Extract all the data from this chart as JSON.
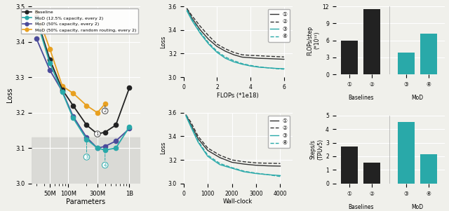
{
  "left_panel": {
    "xlabel": "Parameters",
    "ylabel": "Loss",
    "ylim": [
      3.0,
      3.5
    ],
    "shaded_region": [
      3.0,
      3.13
    ],
    "baseline_params": [
      30000000,
      50000000,
      80000000,
      120000000,
      200000000,
      300000000,
      400000000,
      600000000,
      1000000000
    ],
    "baseline_loss": [
      3.47,
      3.35,
      3.265,
      3.22,
      3.165,
      3.14,
      3.145,
      3.165,
      3.27
    ],
    "mod125_params": [
      30000000,
      50000000,
      80000000,
      120000000,
      200000000,
      300000000,
      400000000,
      600000000,
      1000000000
    ],
    "mod125_loss": [
      3.465,
      3.34,
      3.258,
      3.185,
      3.125,
      3.1,
      3.095,
      3.1,
      3.16
    ],
    "mod50_params": [
      30000000,
      50000000,
      80000000,
      120000000,
      200000000,
      300000000,
      400000000,
      600000000,
      1000000000
    ],
    "mod50_loss": [
      3.41,
      3.32,
      3.26,
      3.19,
      3.13,
      3.1,
      3.105,
      3.12,
      3.155
    ],
    "random50_params": [
      30000000,
      50000000,
      80000000,
      120000000,
      200000000,
      300000000,
      400000000
    ],
    "random50_loss": [
      3.485,
      3.38,
      3.275,
      3.255,
      3.22,
      3.2,
      3.225
    ],
    "color_baseline": "#222222",
    "color_mod125": "#29A9A9",
    "color_mod50": "#4B4B9A",
    "color_random50": "#E8A020",
    "xtick_labels": [
      "50M",
      "100M",
      "300M",
      "1B"
    ],
    "xtick_vals": [
      50000000,
      100000000,
      300000000,
      1000000000
    ]
  },
  "middle_panel_top": {
    "xlabel": "FLOPs (*1e18)",
    "ylabel": "Loss",
    "xlim": [
      0,
      6.5
    ],
    "ylim": [
      3.0,
      3.6
    ],
    "yticks": [
      3.0,
      3.2,
      3.4,
      3.6
    ],
    "xticks": [
      0,
      2,
      4,
      6
    ],
    "curve1_x": [
      0.2,
      0.5,
      1.0,
      1.5,
      2.0,
      2.5,
      3.0,
      3.5,
      4.0,
      4.5,
      5.0,
      5.5,
      6.0
    ],
    "curve1_y": [
      3.58,
      3.5,
      3.4,
      3.32,
      3.26,
      3.22,
      3.19,
      3.17,
      3.165,
      3.16,
      3.158,
      3.155,
      3.152
    ],
    "curve2_x": [
      0.2,
      0.5,
      1.0,
      1.5,
      2.0,
      2.5,
      3.0,
      3.5,
      4.0,
      4.5,
      5.0,
      5.5,
      6.0
    ],
    "curve2_y": [
      3.58,
      3.52,
      3.43,
      3.35,
      3.28,
      3.24,
      3.21,
      3.19,
      3.185,
      3.182,
      3.178,
      3.175,
      3.172
    ],
    "curve3_x": [
      0.2,
      0.5,
      1.0,
      1.5,
      2.0,
      2.5,
      3.0,
      3.5,
      4.0,
      4.5,
      5.0,
      5.5,
      6.0
    ],
    "curve3_y": [
      3.56,
      3.48,
      3.37,
      3.28,
      3.21,
      3.16,
      3.13,
      3.11,
      3.095,
      3.085,
      3.08,
      3.075,
      3.072
    ],
    "curve4_x": [
      0.2,
      0.5,
      1.0,
      1.5,
      2.0,
      2.5,
      3.0,
      3.5,
      4.0,
      4.5,
      5.0,
      5.5,
      6.0
    ],
    "curve4_y": [
      3.57,
      3.49,
      3.38,
      3.29,
      3.22,
      3.17,
      3.14,
      3.115,
      3.1,
      3.088,
      3.08,
      3.073,
      3.068
    ]
  },
  "middle_panel_bottom": {
    "xlabel": "Wall-clock",
    "ylabel": "Loss",
    "xlim": [
      0,
      4500
    ],
    "ylim": [
      3.0,
      3.6
    ],
    "yticks": [
      3.0,
      3.2,
      3.4,
      3.6
    ],
    "xticks": [
      0,
      1000,
      2000,
      3000,
      4000
    ],
    "curve1_x": [
      100,
      300,
      600,
      1000,
      1500,
      2000,
      2500,
      3000,
      3500,
      4000
    ],
    "curve1_y": [
      3.58,
      3.5,
      3.38,
      3.28,
      3.22,
      3.18,
      3.165,
      3.155,
      3.15,
      3.148
    ],
    "curve2_x": [
      100,
      300,
      600,
      1000,
      1500,
      2000,
      2500,
      3000,
      3500,
      4000
    ],
    "curve2_y": [
      3.58,
      3.52,
      3.4,
      3.3,
      3.24,
      3.2,
      3.185,
      3.175,
      3.172,
      3.17
    ],
    "curve3_x": [
      100,
      300,
      600,
      1000,
      1500,
      2000,
      2500,
      3000,
      3500,
      4000
    ],
    "curve3_y": [
      3.57,
      3.48,
      3.35,
      3.23,
      3.16,
      3.13,
      3.1,
      3.085,
      3.075,
      3.068
    ],
    "curve4_x": [
      100,
      300,
      600,
      1000,
      1500,
      2000,
      2500,
      3000,
      3500,
      4000
    ],
    "curve4_y": [
      3.58,
      3.49,
      3.36,
      3.24,
      3.17,
      3.135,
      3.105,
      3.088,
      3.075,
      3.06
    ]
  },
  "bar_top": {
    "ylabel": "FLOPs/step\n(*10¹¹)",
    "ylim": [
      0,
      12
    ],
    "yticks": [
      0,
      3,
      6,
      9,
      12
    ],
    "bars": [
      6.0,
      11.5,
      3.8,
      7.2
    ],
    "colors": [
      "#222222",
      "#222222",
      "#29A9A9",
      "#29A9A9"
    ]
  },
  "bar_bottom": {
    "ylabel": "Steps/s\n(TPUv5)",
    "ylim": [
      0,
      5
    ],
    "yticks": [
      0,
      1,
      2,
      3,
      4,
      5
    ],
    "bars": [
      2.7,
      1.55,
      4.5,
      2.15
    ],
    "colors": [
      "#222222",
      "#222222",
      "#29A9A9",
      "#29A9A9"
    ]
  },
  "curve_colors": {
    "c1": "#333333",
    "c1_style": "solid",
    "c2": "#333333",
    "c2_style": "dashed",
    "c3": "#29A9A9",
    "c3_style": "solid",
    "c4": "#29A9A9",
    "c4_style": "dashed"
  },
  "bg_color": "#f0f0eb"
}
